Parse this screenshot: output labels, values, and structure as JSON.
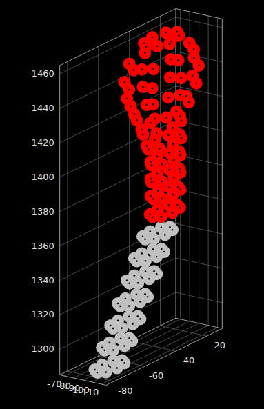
{
  "chart_data": {
    "type": "scatter",
    "grid": true,
    "xlim": [
      -115,
      -65
    ],
    "xticks": [
      -110,
      -100,
      -90,
      -80,
      -70
    ],
    "ylim": [
      -85,
      -10
    ],
    "yticks": [
      -80,
      -60,
      -40,
      -20
    ],
    "zlim": [
      1285,
      1465
    ],
    "zticks": [
      1300,
      1320,
      1340,
      1360,
      1380,
      1400,
      1420,
      1440,
      1460
    ],
    "series": [
      {
        "color": "#c0c0c0",
        "x": [
          -94,
          -96,
          -102,
          -108,
          -110,
          -108,
          -102,
          -96,
          -92,
          -94,
          -100,
          -106,
          -108,
          -106,
          -100,
          -94,
          -91,
          -93,
          -99,
          -105,
          -107,
          -105,
          -99,
          -93,
          -89,
          -91,
          -97,
          -103,
          -105,
          -103,
          -97,
          -91,
          -87,
          -89,
          -95,
          -101,
          -103,
          -101,
          -95,
          -89,
          -85,
          -87,
          -93,
          -99,
          -101,
          -99,
          -93,
          -87,
          -84,
          -86,
          -92,
          -98,
          -100,
          -98,
          -92,
          -86
        ],
        "y": [
          -75,
          -69,
          -67,
          -69,
          -75,
          -81,
          -83,
          -81,
          -69,
          -63,
          -61,
          -63,
          -69,
          -75,
          -77,
          -75,
          -63,
          -57,
          -55,
          -57,
          -63,
          -69,
          -71,
          -69,
          -57,
          -51,
          -49,
          -51,
          -57,
          -63,
          -65,
          -63,
          -50,
          -44,
          -42,
          -44,
          -50,
          -56,
          -58,
          -56,
          -44,
          -38,
          -36,
          -38,
          -44,
          -50,
          -52,
          -50,
          -38,
          -32,
          -30,
          -32,
          -38,
          -44,
          -46,
          -44
        ],
        "z": [
          1290,
          1290,
          1290,
          1290,
          1290,
          1290,
          1290,
          1290,
          1300,
          1300,
          1300,
          1300,
          1300,
          1300,
          1300,
          1300,
          1310,
          1310,
          1310,
          1310,
          1310,
          1310,
          1310,
          1310,
          1320,
          1320,
          1320,
          1320,
          1320,
          1320,
          1320,
          1320,
          1330,
          1330,
          1330,
          1330,
          1330,
          1330,
          1330,
          1330,
          1340,
          1340,
          1340,
          1340,
          1340,
          1340,
          1340,
          1340,
          1350,
          1350,
          1350,
          1350,
          1350,
          1350,
          1350,
          1350
        ]
      },
      {
        "color": "#ff0000",
        "x": [
          -82,
          -84,
          -90,
          -96,
          -98,
          -96,
          -90,
          -84,
          -81,
          -83,
          -89,
          -95,
          -97,
          -95,
          -89,
          -83,
          -80,
          -83,
          -89,
          -95,
          -98,
          -95,
          -89,
          -83,
          -80,
          -83,
          -89,
          -95,
          -98,
          -95,
          -89,
          -83,
          -79,
          -82,
          -89,
          -96,
          -99,
          -96,
          -89,
          -82,
          -76,
          -80,
          -88,
          -96,
          -100,
          -96,
          -88,
          -80,
          -72,
          -77,
          -88,
          -99,
          -104,
          -99,
          -88,
          -77,
          -68,
          -74,
          -88,
          -102,
          -108,
          -102,
          -88,
          -74,
          -67,
          -73,
          -88,
          -103,
          -109,
          -103,
          -88,
          -73,
          -70,
          -75,
          -88,
          -101,
          -106,
          -101,
          -88,
          -75,
          -78,
          -81,
          -88,
          -95,
          -98,
          -95,
          -88,
          -81
        ],
        "y": [
          -32,
          -26,
          -24,
          -26,
          -32,
          -38,
          -40,
          -38,
          -31,
          -25,
          -23,
          -25,
          -31,
          -37,
          -39,
          -37,
          -31,
          -25,
          -22,
          -25,
          -31,
          -37,
          -40,
          -37,
          -31,
          -25,
          -22,
          -25,
          -31,
          -37,
          -40,
          -37,
          -32,
          -25,
          -22,
          -25,
          -32,
          -39,
          -42,
          -39,
          -33,
          -25,
          -21,
          -25,
          -33,
          -41,
          -45,
          -41,
          -33,
          -22,
          -17,
          -22,
          -33,
          -44,
          -49,
          -44,
          -33,
          -19,
          -13,
          -19,
          -33,
          -47,
          -53,
          -47,
          -33,
          -18,
          -12,
          -18,
          -33,
          -48,
          -54,
          -48,
          -33,
          -20,
          -15,
          -20,
          -33,
          -46,
          -51,
          -46,
          -33,
          -26,
          -23,
          -26,
          -33,
          -40,
          -43,
          -40
        ],
        "z": [
          1360,
          1360,
          1360,
          1360,
          1360,
          1360,
          1360,
          1360,
          1370,
          1370,
          1370,
          1370,
          1370,
          1370,
          1370,
          1370,
          1380,
          1380,
          1380,
          1380,
          1380,
          1380,
          1380,
          1380,
          1390,
          1390,
          1390,
          1390,
          1390,
          1390,
          1390,
          1390,
          1400,
          1400,
          1400,
          1400,
          1400,
          1400,
          1400,
          1400,
          1410,
          1410,
          1410,
          1410,
          1410,
          1410,
          1410,
          1410,
          1420,
          1420,
          1420,
          1420,
          1420,
          1420,
          1420,
          1420,
          1430,
          1430,
          1430,
          1430,
          1430,
          1430,
          1430,
          1430,
          1440,
          1440,
          1440,
          1440,
          1440,
          1440,
          1440,
          1440,
          1450,
          1450,
          1450,
          1450,
          1450,
          1450,
          1450,
          1450,
          1460,
          1460,
          1460,
          1460,
          1460,
          1460,
          1460,
          1460
        ]
      }
    ]
  }
}
